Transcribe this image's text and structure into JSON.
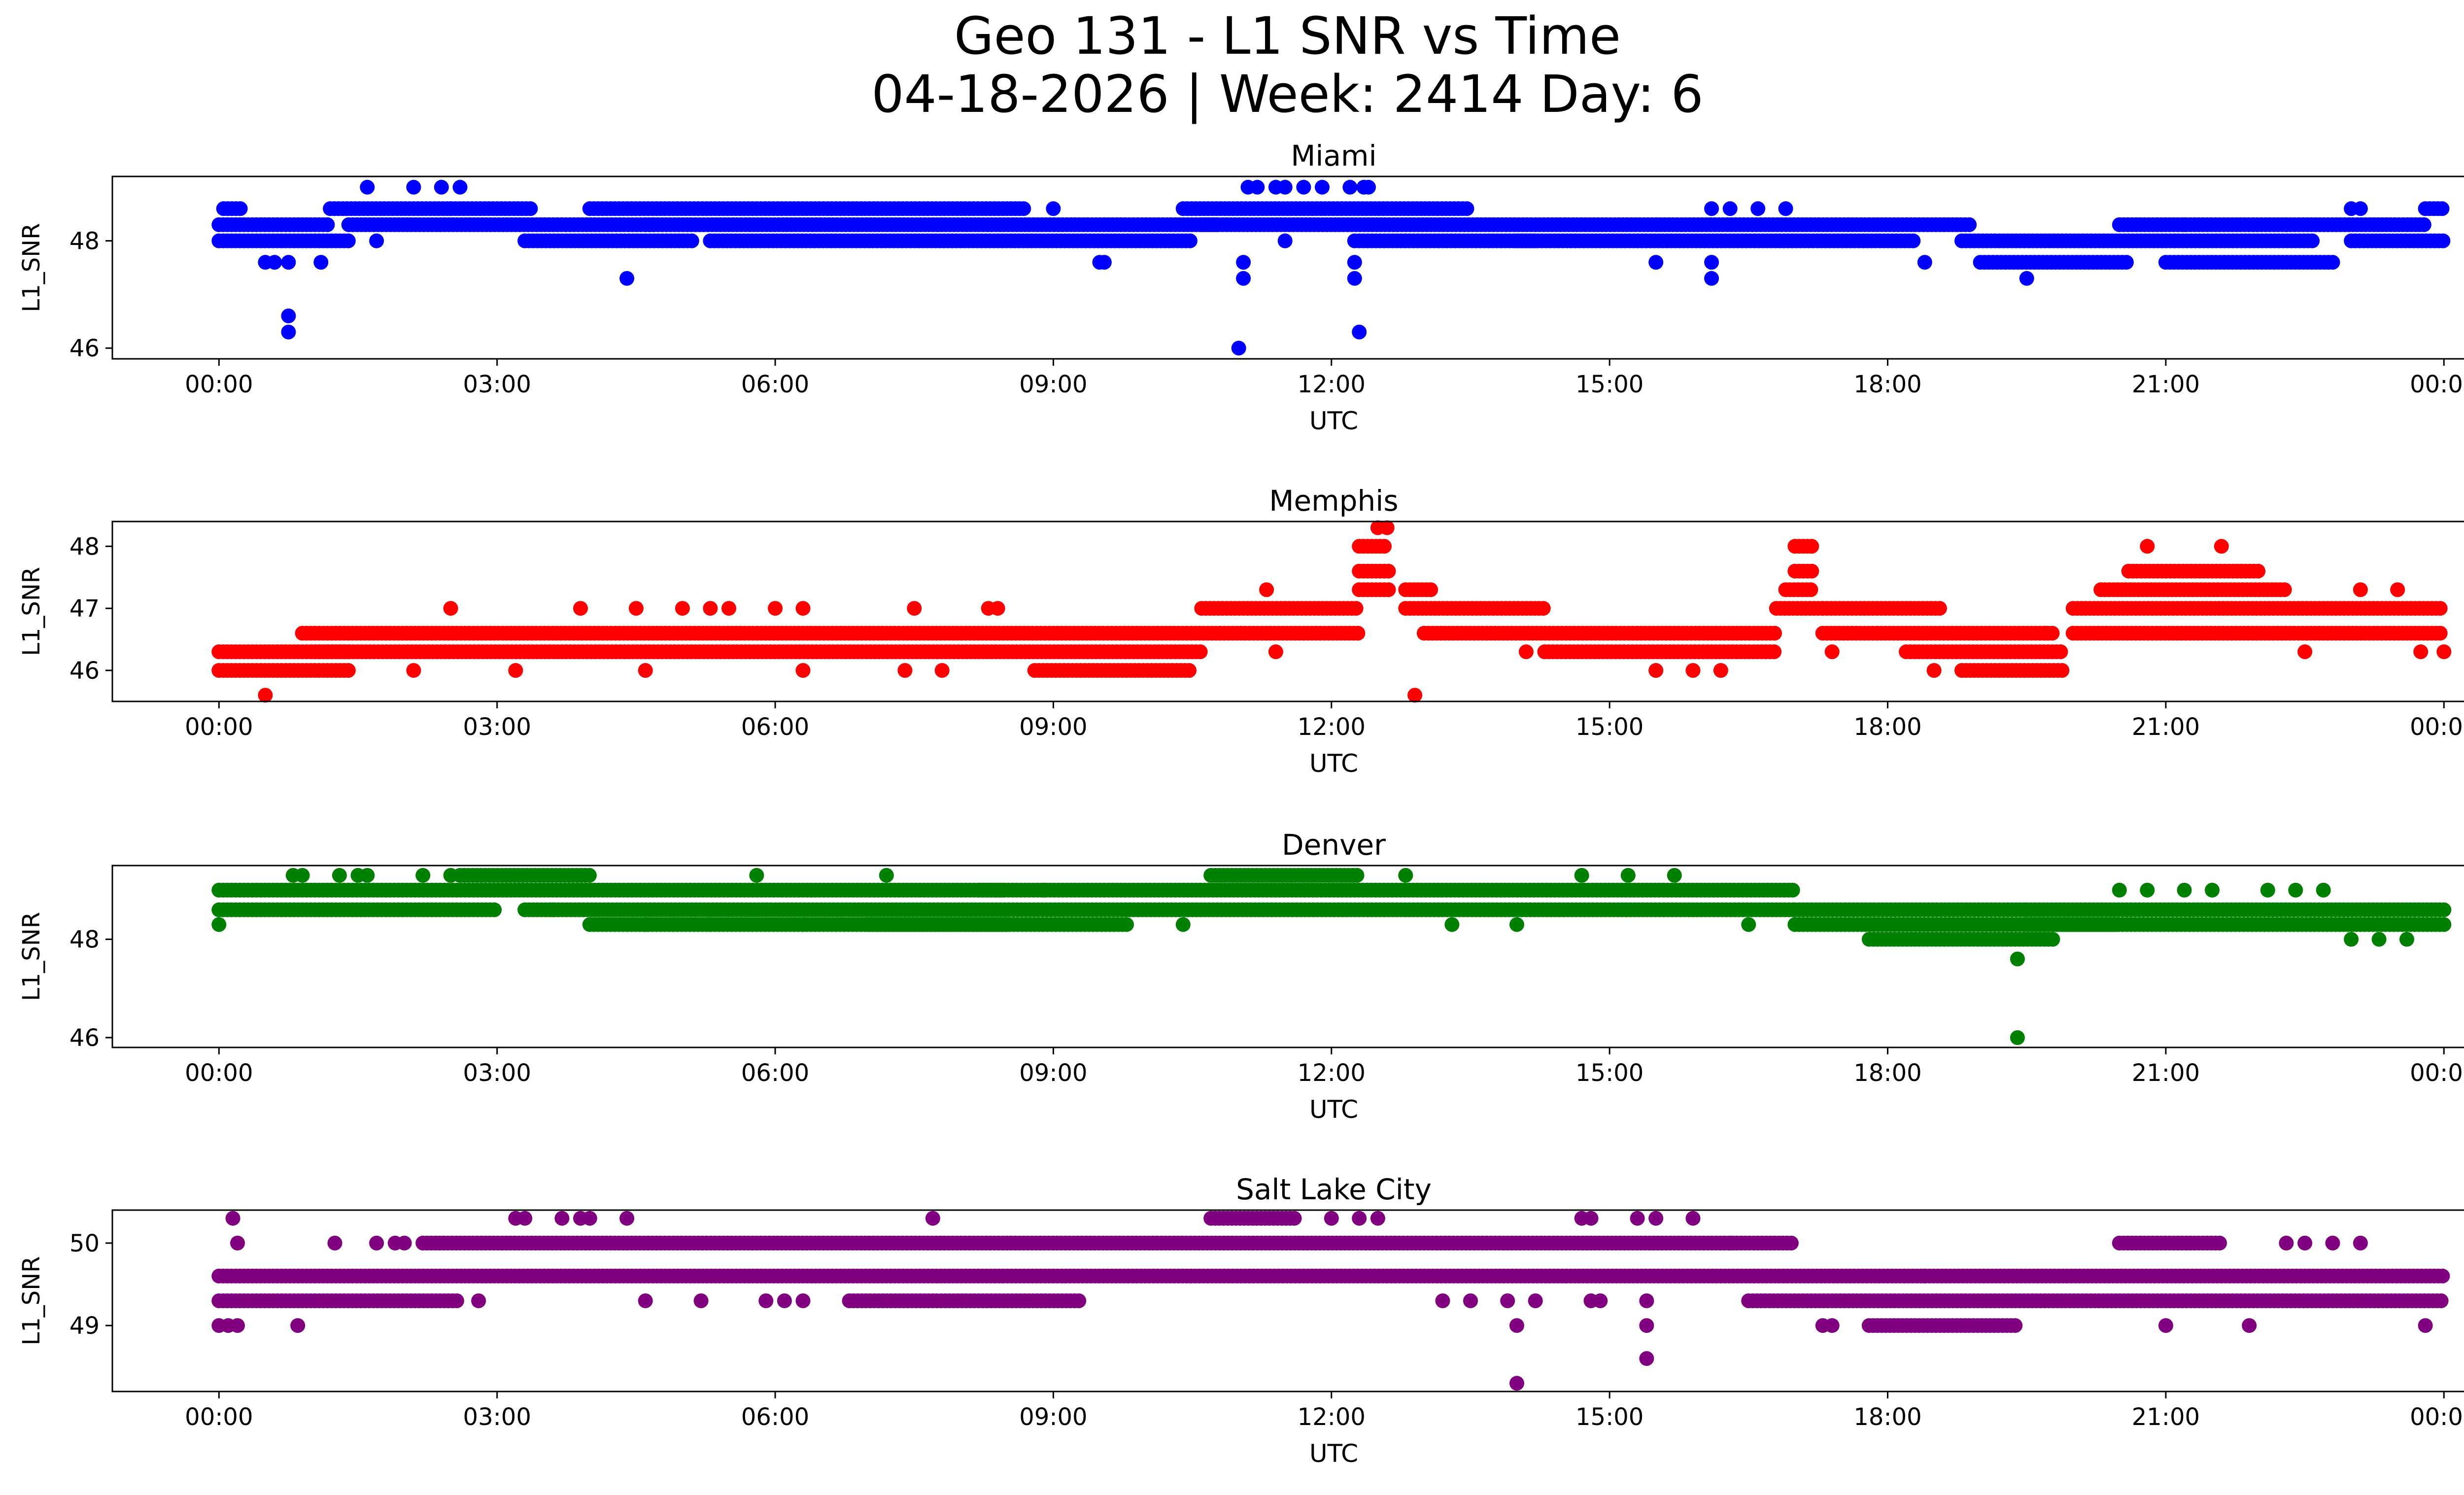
{
  "figure": {
    "title_line1": "Geo 131 - L1 SNR vs Time",
    "title_line2": "04-18-2026 | Week: 2414 Day: 6"
  },
  "chart_data": [
    {
      "type": "scatter",
      "title": "Miami",
      "xlabel": "UTC",
      "ylabel": "L1_SNR",
      "color": "#0000ff",
      "xticks": [
        "00:00",
        "03:00",
        "06:00",
        "09:00",
        "12:00",
        "15:00",
        "18:00",
        "21:00",
        "00:00"
      ],
      "xlim_hours": [
        -1.15,
        25.2
      ],
      "ylim": [
        45.8,
        49.2
      ],
      "yticks": [
        46,
        48
      ],
      "levels": [
        48.0,
        48.3,
        48.6
      ],
      "segments": [
        [
          0.0,
          1.2,
          48.3
        ],
        [
          0.0,
          1.4,
          48.0
        ],
        [
          0.05,
          0.25,
          48.6
        ],
        [
          1.2,
          3.4,
          48.6
        ],
        [
          1.4,
          4.7,
          48.3
        ],
        [
          3.3,
          5.1,
          48.0
        ],
        [
          4.0,
          8.7,
          48.6
        ],
        [
          4.6,
          10.8,
          48.3
        ],
        [
          5.3,
          10.5,
          48.0
        ],
        [
          10.4,
          13.5,
          48.6
        ],
        [
          10.6,
          18.9,
          48.3
        ],
        [
          12.3,
          14.2,
          48.0
        ],
        [
          14.0,
          18.3,
          48.0
        ],
        [
          18.8,
          22.6,
          48.0
        ],
        [
          19.0,
          20.6,
          47.6
        ],
        [
          20.5,
          23.8,
          48.3
        ],
        [
          21.0,
          22.8,
          47.6
        ],
        [
          23.0,
          24.0,
          48.0
        ],
        [
          23.8,
          24.0,
          48.6
        ]
      ],
      "outliers": [
        [
          0.5,
          47.6
        ],
        [
          0.6,
          47.6
        ],
        [
          0.75,
          47.6
        ],
        [
          0.75,
          46.6
        ],
        [
          0.75,
          46.3
        ],
        [
          1.1,
          47.6
        ],
        [
          1.6,
          49.0
        ],
        [
          1.7,
          48.0
        ],
        [
          2.1,
          49.0
        ],
        [
          2.4,
          49.0
        ],
        [
          2.6,
          49.0
        ],
        [
          2.5,
          48.6
        ],
        [
          4.4,
          47.3
        ],
        [
          9.0,
          48.6
        ],
        [
          9.5,
          47.6
        ],
        [
          9.55,
          47.6
        ],
        [
          11.0,
          46.0
        ],
        [
          11.05,
          47.6
        ],
        [
          11.05,
          47.3
        ],
        [
          11.1,
          49.0
        ],
        [
          11.2,
          49.0
        ],
        [
          11.4,
          49.0
        ],
        [
          11.5,
          49.0
        ],
        [
          11.7,
          49.0
        ],
        [
          11.9,
          49.0
        ],
        [
          12.2,
          49.0
        ],
        [
          12.25,
          47.6
        ],
        [
          12.25,
          47.3
        ],
        [
          12.25,
          48.0
        ],
        [
          12.3,
          46.3
        ],
        [
          12.35,
          49.0
        ],
        [
          12.4,
          49.0
        ],
        [
          11.5,
          48.0
        ],
        [
          15.5,
          47.6
        ],
        [
          16.1,
          47.6
        ],
        [
          16.1,
          47.3
        ],
        [
          16.1,
          48.6
        ],
        [
          16.3,
          48.6
        ],
        [
          16.6,
          48.6
        ],
        [
          16.9,
          48.6
        ],
        [
          18.4,
          47.6
        ],
        [
          19.5,
          47.3
        ],
        [
          21.2,
          48.3
        ],
        [
          22.3,
          48.3
        ],
        [
          23.0,
          48.6
        ],
        [
          23.1,
          48.6
        ]
      ]
    },
    {
      "type": "scatter",
      "title": "Memphis",
      "xlabel": "UTC",
      "ylabel": "L1_SNR",
      "color": "#ff0000",
      "xticks": [
        "00:00",
        "03:00",
        "06:00",
        "09:00",
        "12:00",
        "15:00",
        "18:00",
        "21:00",
        "00:00"
      ],
      "xlim_hours": [
        -1.15,
        25.2
      ],
      "ylim": [
        45.5,
        48.4
      ],
      "yticks": [
        46,
        47,
        48
      ],
      "levels": [
        46.0,
        46.3,
        46.6,
        47.0,
        47.3,
        47.6,
        48.0
      ],
      "segments": [
        [
          0.0,
          1.4,
          46.3
        ],
        [
          0.0,
          1.4,
          46.0
        ],
        [
          0.9,
          10.8,
          46.6
        ],
        [
          1.0,
          10.6,
          46.3
        ],
        [
          8.8,
          10.5,
          46.0
        ],
        [
          10.6,
          12.3,
          47.0
        ],
        [
          10.8,
          12.3,
          46.6
        ],
        [
          12.3,
          12.65,
          47.3
        ],
        [
          12.3,
          12.65,
          47.6
        ],
        [
          12.3,
          12.6,
          48.0
        ],
        [
          12.8,
          13.1,
          47.3
        ],
        [
          12.8,
          14.3,
          47.0
        ],
        [
          13.0,
          16.8,
          46.6
        ],
        [
          14.3,
          16.8,
          46.3
        ],
        [
          16.8,
          17.3,
          47.0
        ],
        [
          16.9,
          17.2,
          47.3
        ],
        [
          17.0,
          17.2,
          47.6
        ],
        [
          17.0,
          17.2,
          48.0
        ],
        [
          17.3,
          18.6,
          47.0
        ],
        [
          17.3,
          19.8,
          46.6
        ],
        [
          18.2,
          19.9,
          46.3
        ],
        [
          18.8,
          19.9,
          46.0
        ],
        [
          20.0,
          24.0,
          46.6
        ],
        [
          20.0,
          24.0,
          47.0
        ],
        [
          20.3,
          22.3,
          47.3
        ],
        [
          20.6,
          22.0,
          47.6
        ]
      ],
      "outliers": [
        [
          0.5,
          45.6
        ],
        [
          2.1,
          46.0
        ],
        [
          2.5,
          47.0
        ],
        [
          3.2,
          46.0
        ],
        [
          3.9,
          47.0
        ],
        [
          4.5,
          47.0
        ],
        [
          4.6,
          46.0
        ],
        [
          5.0,
          47.0
        ],
        [
          5.3,
          47.0
        ],
        [
          5.5,
          47.0
        ],
        [
          6.0,
          47.0
        ],
        [
          6.3,
          46.0
        ],
        [
          6.3,
          47.0
        ],
        [
          7.5,
          47.0
        ],
        [
          7.4,
          46.0
        ],
        [
          7.8,
          46.0
        ],
        [
          8.3,
          47.0
        ],
        [
          8.4,
          47.0
        ],
        [
          11.3,
          47.3
        ],
        [
          11.4,
          46.3
        ],
        [
          12.5,
          48.3
        ],
        [
          12.6,
          48.3
        ],
        [
          12.9,
          45.6
        ],
        [
          14.1,
          46.3
        ],
        [
          15.5,
          46.0
        ],
        [
          15.9,
          46.0
        ],
        [
          16.2,
          46.0
        ],
        [
          17.4,
          46.3
        ],
        [
          18.5,
          46.0
        ],
        [
          19.7,
          46.6
        ],
        [
          20.8,
          48.0
        ],
        [
          21.6,
          48.0
        ],
        [
          22.5,
          46.3
        ],
        [
          23.1,
          47.3
        ],
        [
          23.5,
          47.3
        ],
        [
          23.75,
          46.3
        ],
        [
          24.0,
          46.3
        ]
      ]
    },
    {
      "type": "scatter",
      "title": "Denver",
      "xlabel": "UTC",
      "ylabel": "L1_SNR",
      "color": "#008000",
      "xticks": [
        "00:00",
        "03:00",
        "06:00",
        "09:00",
        "12:00",
        "15:00",
        "18:00",
        "21:00",
        "00:00"
      ],
      "xlim_hours": [
        -1.15,
        25.2
      ],
      "ylim": [
        45.8,
        49.5
      ],
      "yticks": [
        46,
        48
      ],
      "levels": [
        48.0,
        48.3,
        48.6,
        49.0,
        49.3
      ],
      "segments": [
        [
          0.0,
          8.5,
          49.0
        ],
        [
          0.0,
          3.0,
          48.6
        ],
        [
          3.3,
          17.0,
          48.6
        ],
        [
          4.0,
          8.5,
          48.3
        ],
        [
          7.0,
          9.8,
          48.3
        ],
        [
          8.2,
          17.0,
          49.0
        ],
        [
          10.7,
          12.3,
          49.3
        ],
        [
          17.0,
          19.5,
          48.6
        ],
        [
          17.0,
          20.5,
          48.3
        ],
        [
          17.8,
          19.8,
          48.0
        ],
        [
          19.5,
          24.0,
          48.6
        ],
        [
          19.5,
          24.0,
          48.3
        ],
        [
          2.6,
          4.0,
          49.3
        ]
      ],
      "outliers": [
        [
          0.0,
          48.3
        ],
        [
          0.8,
          49.3
        ],
        [
          0.9,
          49.3
        ],
        [
          1.3,
          49.3
        ],
        [
          1.5,
          49.3
        ],
        [
          1.6,
          49.3
        ],
        [
          2.2,
          49.3
        ],
        [
          2.5,
          49.3
        ],
        [
          3.6,
          48.6
        ],
        [
          4.6,
          48.3
        ],
        [
          4.9,
          48.3
        ],
        [
          5.3,
          48.3
        ],
        [
          5.8,
          49.3
        ],
        [
          6.3,
          48.3
        ],
        [
          7.2,
          49.3
        ],
        [
          8.9,
          49.0
        ],
        [
          10.4,
          48.3
        ],
        [
          12.8,
          49.3
        ],
        [
          13.3,
          48.3
        ],
        [
          14.0,
          48.3
        ],
        [
          14.7,
          49.3
        ],
        [
          15.2,
          49.3
        ],
        [
          15.7,
          49.3
        ],
        [
          16.5,
          48.3
        ],
        [
          19.4,
          47.6
        ],
        [
          19.4,
          46.0
        ],
        [
          20.5,
          49.0
        ],
        [
          20.8,
          49.0
        ],
        [
          21.2,
          49.0
        ],
        [
          21.5,
          49.0
        ],
        [
          22.1,
          49.0
        ],
        [
          22.4,
          49.0
        ],
        [
          22.7,
          49.0
        ],
        [
          23.0,
          48.0
        ],
        [
          23.3,
          48.0
        ],
        [
          23.6,
          48.0
        ]
      ]
    },
    {
      "type": "scatter",
      "title": "Salt Lake City",
      "xlabel": "UTC",
      "ylabel": "L1_SNR",
      "color": "#800080",
      "xticks": [
        "00:00",
        "03:00",
        "06:00",
        "09:00",
        "12:00",
        "15:00",
        "18:00",
        "21:00",
        "00:00"
      ],
      "xlim_hours": [
        -1.15,
        25.2
      ],
      "ylim": [
        48.2,
        50.4
      ],
      "yticks": [
        49,
        50
      ],
      "levels": [
        49.0,
        49.3,
        49.6,
        50.0,
        50.3
      ],
      "segments": [
        [
          0.0,
          2.6,
          49.3
        ],
        [
          0.0,
          24.0,
          49.6
        ],
        [
          2.2,
          17.0,
          50.0
        ],
        [
          6.8,
          9.3,
          49.3
        ],
        [
          10.7,
          11.6,
          50.3
        ],
        [
          16.5,
          24.0,
          49.3
        ],
        [
          17.8,
          19.4,
          49.0
        ],
        [
          20.5,
          21.6,
          50.0
        ]
      ],
      "outliers": [
        [
          0.0,
          49.0
        ],
        [
          0.1,
          49.0
        ],
        [
          0.2,
          49.0
        ],
        [
          0.15,
          50.3
        ],
        [
          0.2,
          50.0
        ],
        [
          0.85,
          49.0
        ],
        [
          1.25,
          50.0
        ],
        [
          1.7,
          50.0
        ],
        [
          1.9,
          50.0
        ],
        [
          2.0,
          50.0
        ],
        [
          2.8,
          49.3
        ],
        [
          3.2,
          50.3
        ],
        [
          3.3,
          50.3
        ],
        [
          3.7,
          50.3
        ],
        [
          3.9,
          50.3
        ],
        [
          4.0,
          50.3
        ],
        [
          4.4,
          50.3
        ],
        [
          4.6,
          49.3
        ],
        [
          5.2,
          49.3
        ],
        [
          5.9,
          49.3
        ],
        [
          6.1,
          49.3
        ],
        [
          6.3,
          49.3
        ],
        [
          7.7,
          50.3
        ],
        [
          12.0,
          50.3
        ],
        [
          12.3,
          50.3
        ],
        [
          12.5,
          50.3
        ],
        [
          13.2,
          49.3
        ],
        [
          13.5,
          49.3
        ],
        [
          13.9,
          49.3
        ],
        [
          14.0,
          49.0
        ],
        [
          14.0,
          48.3
        ],
        [
          14.2,
          49.3
        ],
        [
          14.8,
          49.3
        ],
        [
          14.9,
          49.3
        ],
        [
          14.7,
          50.3
        ],
        [
          14.8,
          50.3
        ],
        [
          15.3,
          50.3
        ],
        [
          15.5,
          50.3
        ],
        [
          15.4,
          49.3
        ],
        [
          15.4,
          49.0
        ],
        [
          15.4,
          48.6
        ],
        [
          15.9,
          50.3
        ],
        [
          16.3,
          50.0
        ],
        [
          17.3,
          49.0
        ],
        [
          17.4,
          49.0
        ],
        [
          18.4,
          49.6
        ],
        [
          21.0,
          49.0
        ],
        [
          21.9,
          49.0
        ],
        [
          22.3,
          50.0
        ],
        [
          22.5,
          50.0
        ],
        [
          22.8,
          50.0
        ],
        [
          23.1,
          50.0
        ],
        [
          23.8,
          49.0
        ]
      ]
    }
  ]
}
